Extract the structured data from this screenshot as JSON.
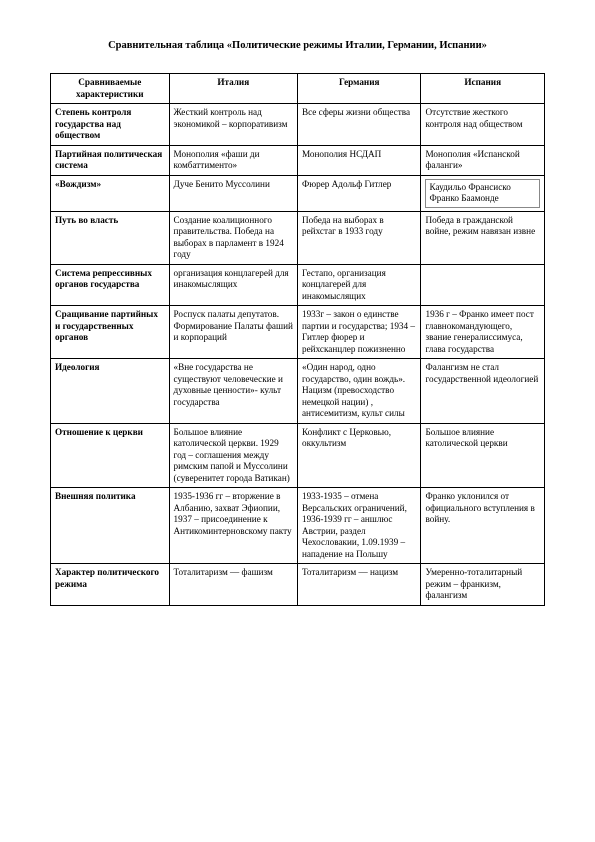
{
  "title": "Сравнительная таблица «Политические режимы Италии, Германии, Испании»",
  "headers": [
    "Сравниваемые характеристики",
    "Италия",
    "Германия",
    "Испания"
  ],
  "rows": [
    {
      "label": "Степень контроля государства над обществом",
      "it": "Жесткий контроль над экономикой – корпоративизм",
      "de": "Все сферы жизни общества",
      "es": "Отсутствие жесткого контроля над обществом"
    },
    {
      "label": "Партийная политическая система",
      "it": "Монополия «фаши ди комбаттименто»",
      "de": "Монополия НСДАП",
      "es": "Монополия «Испанской фаланги»"
    },
    {
      "label": "«Вождизм»",
      "it": "Дуче Бенито Муссолини",
      "de": "Фюрер Адольф Гитлер",
      "es": "Каудильо Франсиско Франко Баамонде"
    },
    {
      "label": "Путь во власть",
      "it": "Создание коалиционного правительства. Победа на выборах в парламент в 1924 году",
      "de": "Победа на выборах в рейхстаг в 1933 году",
      "es": "Победа в гражданской войне, режим навязан извне"
    },
    {
      "label": "Система репрессивных органов государства",
      "it": "организация концлагерей для инакомыслящих",
      "de": "Гестапо, организация концлагерей для инакомыслящих",
      "es": ""
    },
    {
      "label": "Сращивание партийных и государственных органов",
      "it": "Роспуск палаты депутатов. Формирование Палаты фаший и корпораций",
      "de": "1933г – закон о единстве партии и государства; 1934 – Гитлер фюрер и рейхсканцлер пожизненно",
      "es": "1936 г – Франко имеет пост главнокомандующего, звание генералиссимуса, глава государства"
    },
    {
      "label": "Идеология",
      "it": "«Вне государства не существуют человеческие и духовные ценности»- культ государства",
      "de": "«Один народ, одно государство, один вождь». Нацизм (превосходство немецкой нации) , антисемитизм, культ силы",
      "es": "Фалангизм не стал государственной идеологией"
    },
    {
      "label": "Отношение к церкви",
      "it": "Большое влияние католической церкви. 1929 год – соглашения между римским папой и Муссолини (суверенитет города Ватикан)",
      "de": "Конфликт с Церковью, оккультизм",
      "es": "Большое влияние католической церкви"
    },
    {
      "label": "Внешняя политика",
      "it": "1935-1936 гг – вторжение в Албанию, захват Эфиопии, 1937 – присоединение к Антикоминтерновскому пакту",
      "de": "1933-1935 – отмена Версальских ограничений, 1936-1939 гг – аншлюс Австрии, раздел Чехословакии, 1.09.1939 – нападение на Польшу",
      "es": "Франко уклонился от официального вступления в войну."
    },
    {
      "label": "Характер политического режима",
      "it": "Тоталитаризм — фашизм",
      "de": "Тоталитаризм — нацизм",
      "es": "Умеренно-тоталитарный режим – франкизм, фалангизм"
    }
  ]
}
